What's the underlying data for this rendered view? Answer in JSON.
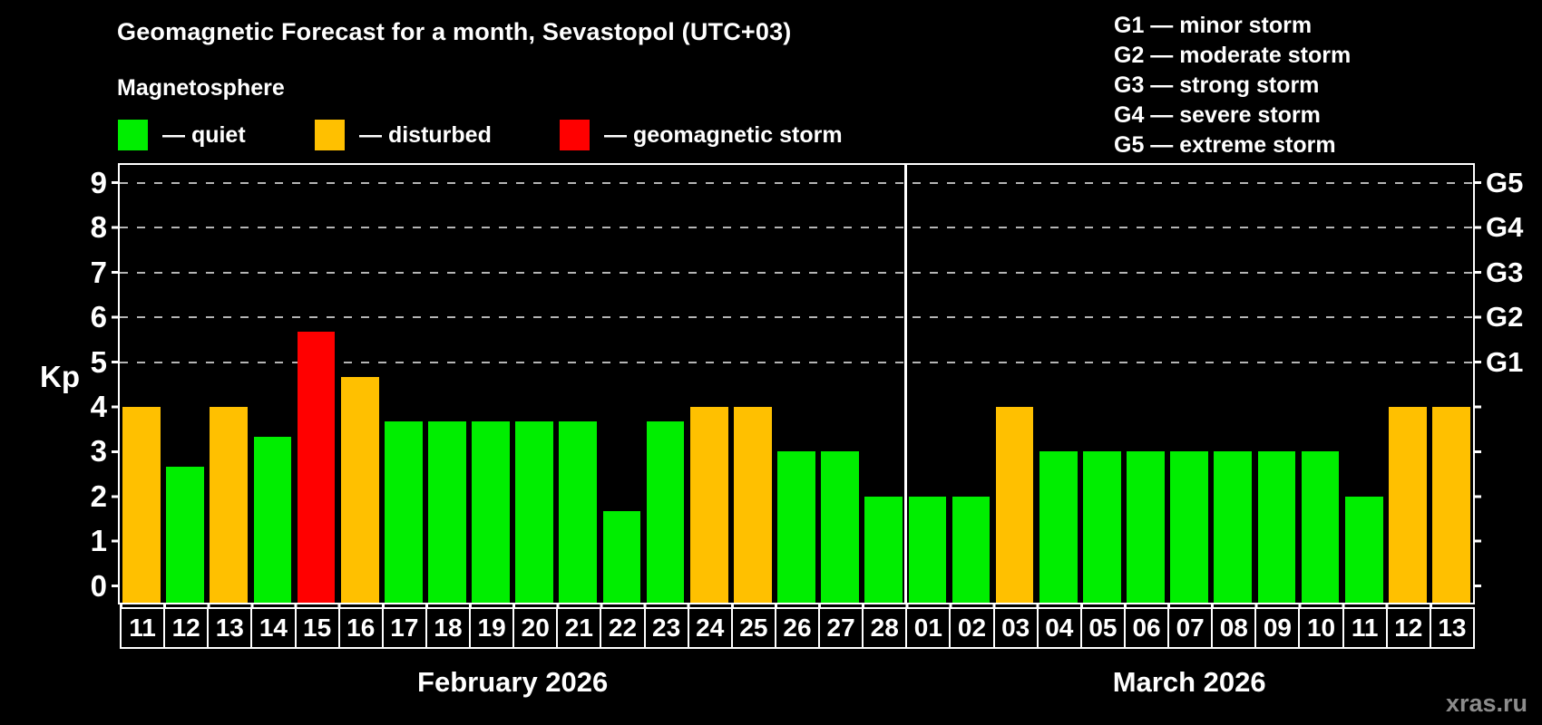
{
  "header": {
    "title": "Geomagnetic Forecast for a month, Sevastopol (UTC+03)",
    "subtitle": "Magnetosphere",
    "legend": [
      {
        "key": "quiet",
        "label": "— quiet"
      },
      {
        "key": "disturbed",
        "label": "— disturbed"
      },
      {
        "key": "storm",
        "label": "— geomagnetic storm"
      }
    ],
    "g_scale_legend": [
      "G1 — minor storm",
      "G2 — moderate storm",
      "G3 — strong storm",
      "G4 — severe storm",
      "G5 — extreme storm"
    ]
  },
  "chart_data": {
    "type": "bar",
    "ylabel": "Kp",
    "xlabel": "",
    "ylim": [
      0,
      9
    ],
    "grid": "dashed horizontal lines at Kp 5-9 only (G-storm levels)",
    "legend_position": "top-left (status colors), top-right (G scale)",
    "y_ticks": [
      0,
      1,
      2,
      3,
      4,
      5,
      6,
      7,
      8,
      9
    ],
    "g_scale": [
      {
        "g": "G1",
        "kp": 5
      },
      {
        "g": "G2",
        "kp": 6
      },
      {
        "g": "G3",
        "kp": 7
      },
      {
        "g": "G4",
        "kp": 8
      },
      {
        "g": "G5",
        "kp": 9
      }
    ],
    "colors": {
      "quiet": "#00ee00",
      "disturbed": "#ffc000",
      "storm": "#ff0000"
    },
    "months": [
      {
        "label": "February 2026",
        "days": 18
      },
      {
        "label": "March 2026",
        "days": 13
      }
    ],
    "points": [
      {
        "day": "11",
        "kp": 4.0,
        "status": "disturbed"
      },
      {
        "day": "12",
        "kp": 2.67,
        "status": "quiet"
      },
      {
        "day": "13",
        "kp": 4.0,
        "status": "disturbed"
      },
      {
        "day": "14",
        "kp": 3.33,
        "status": "quiet"
      },
      {
        "day": "15",
        "kp": 5.67,
        "status": "storm"
      },
      {
        "day": "16",
        "kp": 4.67,
        "status": "disturbed"
      },
      {
        "day": "17",
        "kp": 3.67,
        "status": "quiet"
      },
      {
        "day": "18",
        "kp": 3.67,
        "status": "quiet"
      },
      {
        "day": "19",
        "kp": 3.67,
        "status": "quiet"
      },
      {
        "day": "20",
        "kp": 3.67,
        "status": "quiet"
      },
      {
        "day": "21",
        "kp": 3.67,
        "status": "quiet"
      },
      {
        "day": "22",
        "kp": 1.67,
        "status": "quiet"
      },
      {
        "day": "23",
        "kp": 3.67,
        "status": "quiet"
      },
      {
        "day": "24",
        "kp": 4.0,
        "status": "disturbed"
      },
      {
        "day": "25",
        "kp": 4.0,
        "status": "disturbed"
      },
      {
        "day": "26",
        "kp": 3.0,
        "status": "quiet"
      },
      {
        "day": "27",
        "kp": 3.0,
        "status": "quiet"
      },
      {
        "day": "28",
        "kp": 2.0,
        "status": "quiet"
      },
      {
        "day": "01",
        "kp": 2.0,
        "status": "quiet"
      },
      {
        "day": "02",
        "kp": 2.0,
        "status": "quiet"
      },
      {
        "day": "03",
        "kp": 4.0,
        "status": "disturbed"
      },
      {
        "day": "04",
        "kp": 3.0,
        "status": "quiet"
      },
      {
        "day": "05",
        "kp": 3.0,
        "status": "quiet"
      },
      {
        "day": "06",
        "kp": 3.0,
        "status": "quiet"
      },
      {
        "day": "07",
        "kp": 3.0,
        "status": "quiet"
      },
      {
        "day": "08",
        "kp": 3.0,
        "status": "quiet"
      },
      {
        "day": "09",
        "kp": 3.0,
        "status": "quiet"
      },
      {
        "day": "10",
        "kp": 3.0,
        "status": "quiet"
      },
      {
        "day": "11",
        "kp": 2.0,
        "status": "quiet"
      },
      {
        "day": "12",
        "kp": 4.0,
        "status": "disturbed"
      },
      {
        "day": "13",
        "kp": 4.0,
        "status": "disturbed"
      }
    ]
  },
  "footer": {
    "watermark": "xras.ru"
  }
}
